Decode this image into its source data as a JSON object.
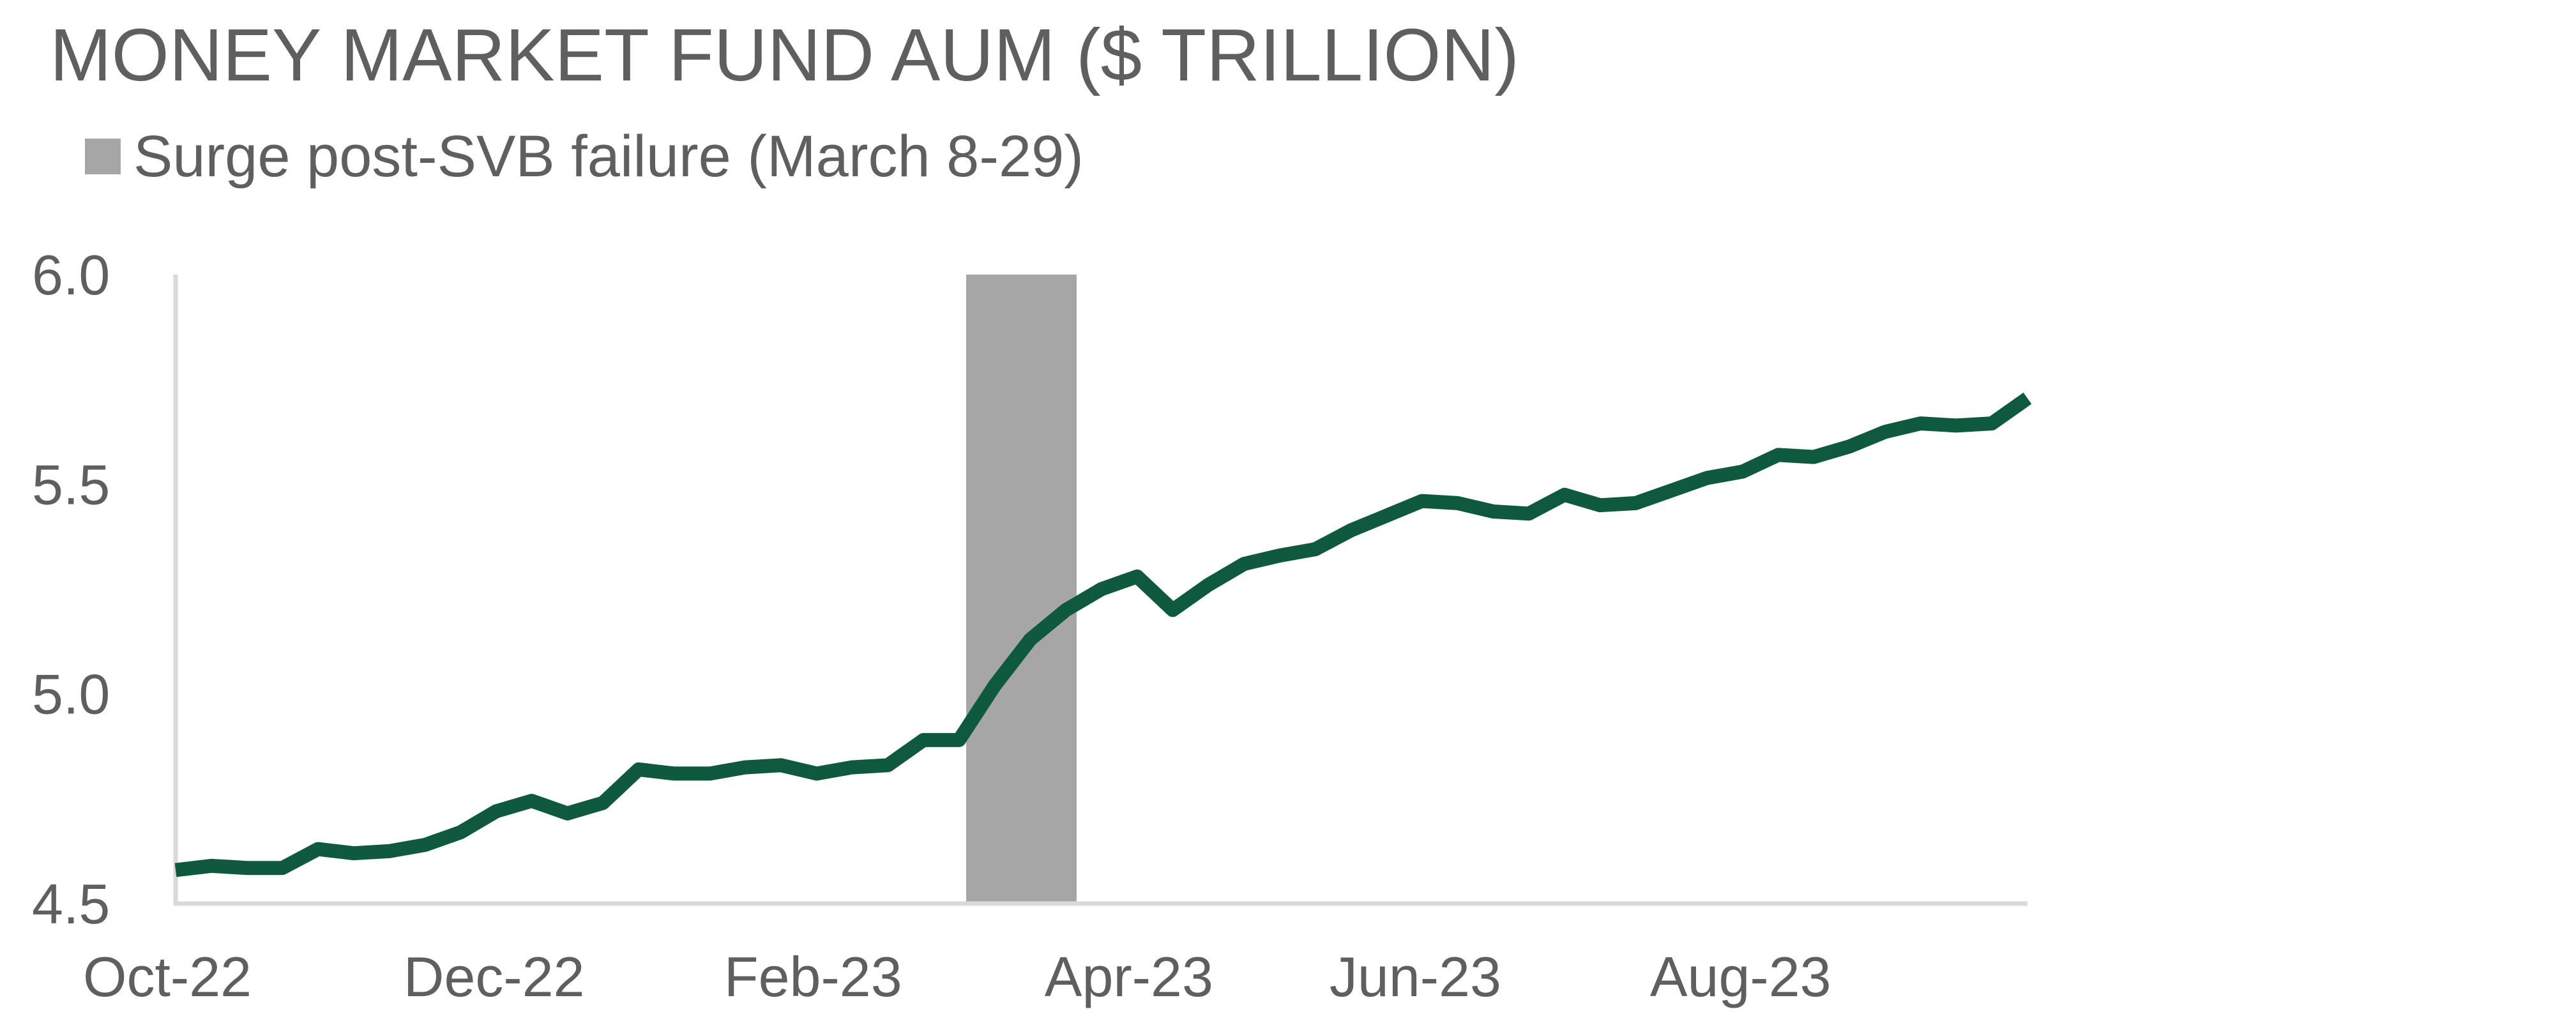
{
  "chart_data": {
    "type": "line",
    "title": "MONEY MARKET FUND AUM ($ TRILLION)",
    "xlabel": "",
    "ylabel": "",
    "ylim": [
      4.5,
      6.0
    ],
    "yticks": [
      "6.0",
      "5.5",
      "5.0",
      "4.5"
    ],
    "ytick_values": [
      6.0,
      5.5,
      5.0,
      4.5
    ],
    "xticks": [
      "Oct-22",
      "Dec-22",
      "Feb-23",
      "Apr-23",
      "Jun-23",
      "Aug-23"
    ],
    "xtick_index": [
      0,
      9,
      18,
      27,
      35,
      44
    ],
    "legend": [
      {
        "label": "Surge post-SVB failure (March 8-29)",
        "color": "#a6a6a6",
        "kind": "shaded-band"
      }
    ],
    "shaded_band": {
      "label": "Surge post-SVB failure (March 8-29)",
      "start_index": 22.2,
      "end_index": 25.3,
      "color": "#a6a6a6"
    },
    "series": [
      {
        "color": "#0f5a3e",
        "values": [
          4.58,
          4.59,
          4.585,
          4.585,
          4.63,
          4.62,
          4.625,
          4.64,
          4.67,
          4.72,
          4.745,
          4.715,
          4.74,
          4.82,
          4.81,
          4.81,
          4.825,
          4.83,
          4.81,
          4.825,
          4.83,
          4.89,
          4.89,
          5.02,
          5.13,
          5.2,
          5.25,
          5.28,
          5.2,
          5.26,
          5.31,
          5.33,
          5.345,
          5.39,
          5.425,
          5.46,
          5.455,
          5.435,
          5.43,
          5.475,
          5.45,
          5.455,
          5.485,
          5.515,
          5.53,
          5.57,
          5.565,
          5.59,
          5.625,
          5.645,
          5.64,
          5.645,
          5.705
        ]
      }
    ]
  }
}
